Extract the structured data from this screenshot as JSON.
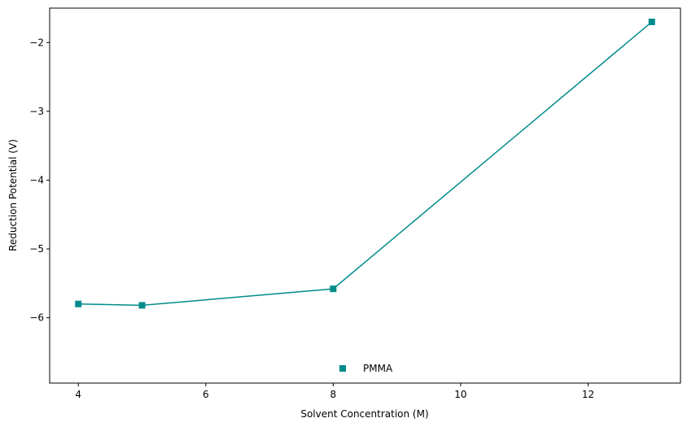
{
  "chart_data": {
    "type": "line",
    "title": "",
    "xlabel": "Solvent Concentration (M)",
    "ylabel": "Reduction Potential (V)",
    "xlim": [
      3.55,
      13.45
    ],
    "ylim": [
      -6.95,
      -1.5
    ],
    "x_ticks": [
      4,
      6,
      8,
      10,
      12
    ],
    "y_ticks": [
      -6,
      -5,
      -4,
      -3,
      -2
    ],
    "x_tick_labels": [
      "4",
      "6",
      "8",
      "10",
      "12"
    ],
    "y_tick_labels": [
      "−6",
      "−5",
      "−4",
      "−3",
      "−2"
    ],
    "grid": false,
    "legend_position": "lower-center",
    "series": [
      {
        "name": "PMMA",
        "color": "#008b8b",
        "marker": "square",
        "x": [
          4,
          5,
          8,
          13
        ],
        "y": [
          -5.8,
          -5.82,
          -5.58,
          -1.7
        ]
      }
    ]
  }
}
